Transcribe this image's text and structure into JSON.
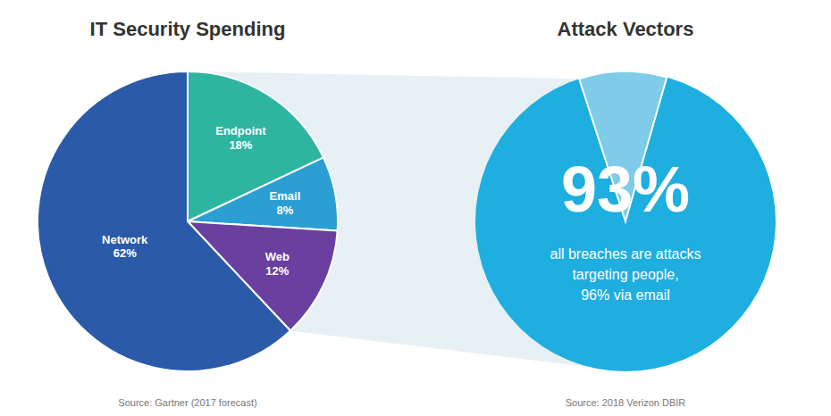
{
  "chart_data": [
    {
      "type": "pie",
      "title": "IT Security Spending",
      "categories": [
        "Endpoint",
        "Email",
        "Web",
        "Network"
      ],
      "values": [
        18,
        8,
        12,
        62
      ],
      "value_labels": [
        "18%",
        "8%",
        "12%",
        "62%"
      ],
      "colors": [
        "#2EB5A0",
        "#2B9FD4",
        "#6B3FA0",
        "#2B5BA8"
      ],
      "data_labels": true,
      "annotations": [
        "Source: Gartner (2017 forecast)"
      ]
    },
    {
      "type": "stat",
      "title": "Attack Vectors",
      "values": [
        93
      ],
      "value_labels": [
        "93%"
      ],
      "subtitle": "all breaches are attacks\ntargeting people,\n96% via email",
      "colors": [
        "#1FAEE0",
        "#7ECBEA"
      ],
      "annotations": [
        "Source: 2018 Verizon DBIR"
      ]
    }
  ]
}
